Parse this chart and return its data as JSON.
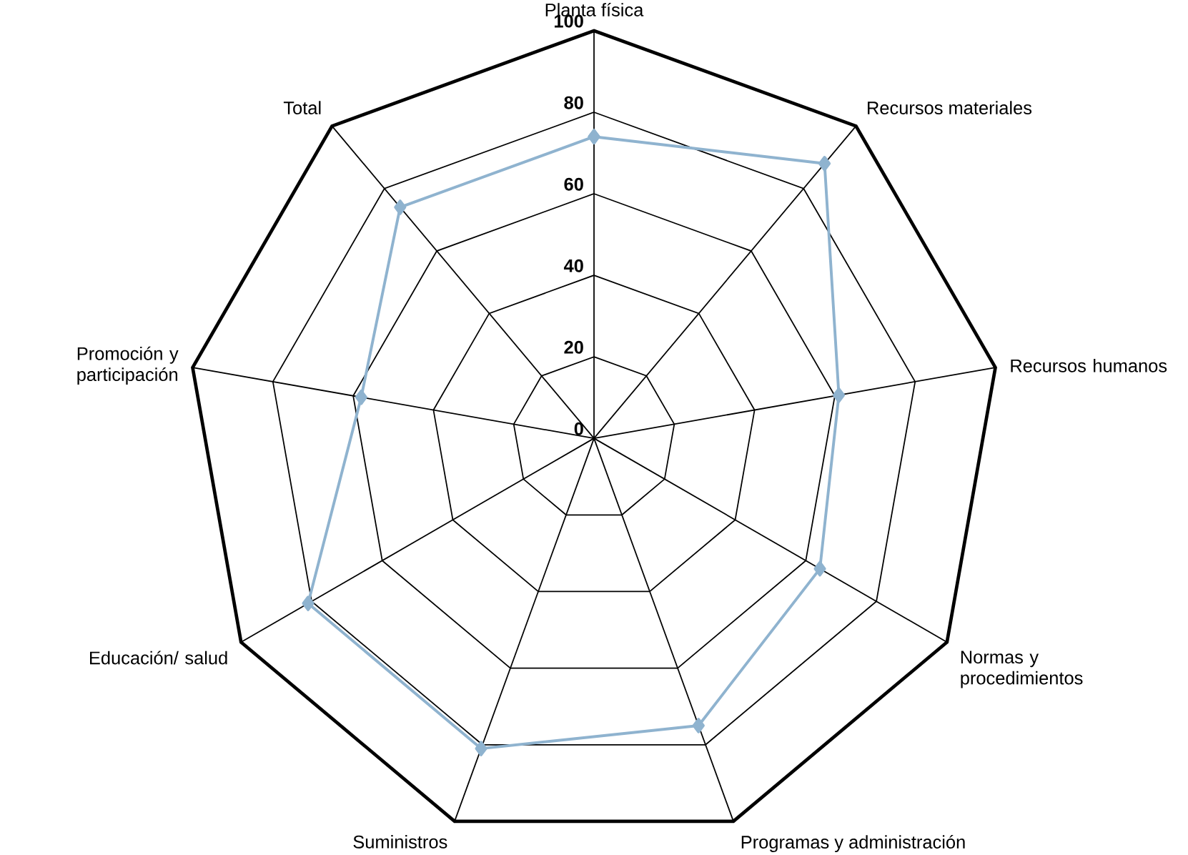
{
  "chart_data": {
    "type": "radar",
    "categories": [
      "Planta física",
      "Recursos materiales",
      "Recursos humanos",
      "Normas y procedimientos",
      "Programas y administración",
      "Suministros",
      "Educación/ salud",
      "Promoción y participación",
      "Total"
    ],
    "ylim": [
      0,
      100
    ],
    "yticks": [
      0,
      20,
      40,
      60,
      80,
      100
    ],
    "grid": true,
    "marker": "diamond",
    "series": [
      {
        "color": "#8fb3cf",
        "values": [
          74,
          88,
          61,
          64,
          75,
          81,
          81,
          58,
          74
        ]
      }
    ]
  }
}
